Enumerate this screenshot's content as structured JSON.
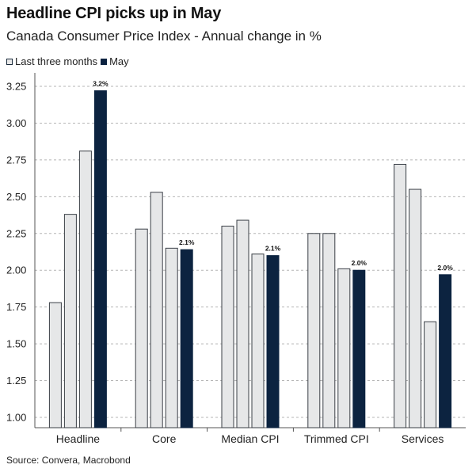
{
  "header": {
    "title": "Headline CPI picks up in May",
    "subtitle": "Canada Consumer Price Index - Annual change in %"
  },
  "legend": {
    "items": [
      {
        "label": "Last three months",
        "color": "#e8e8e8",
        "border": "#1a2b3c"
      },
      {
        "label": "May",
        "color": "#0c2340",
        "border": "#0c2340"
      }
    ]
  },
  "source": "Source: Convera, Macrobond",
  "colors": {
    "light_bar": "#e6e7e8",
    "dark_bar": "#0c2340",
    "bar_stroke": "#3a3f46",
    "grid": "#b5b5b5"
  },
  "chart_data": {
    "type": "bar",
    "categories": [
      "Headline",
      "Core",
      "Median CPI",
      "Trimmed CPI",
      "Services"
    ],
    "series": [
      {
        "values": [
          1.78,
          2.28,
          2.3,
          2.25,
          2.72
        ]
      },
      {
        "values": [
          2.38,
          2.53,
          2.34,
          2.25,
          2.55
        ]
      },
      {
        "values": [
          2.81,
          2.15,
          2.11,
          2.01,
          1.65
        ]
      },
      {
        "name": "May",
        "values": [
          3.22,
          2.14,
          2.1,
          2.0,
          1.97
        ]
      }
    ],
    "data_labels": [
      "3.2%",
      "2.1%",
      "2.1%",
      "2.0%",
      "2.0%"
    ],
    "yticks": [
      "1.00",
      "1.25",
      "1.50",
      "1.75",
      "2.00",
      "2.25",
      "2.50",
      "2.75",
      "3.00",
      "3.25"
    ],
    "ylim": [
      0.93,
      3.32
    ],
    "grid": true,
    "legend_position": "top-left"
  }
}
